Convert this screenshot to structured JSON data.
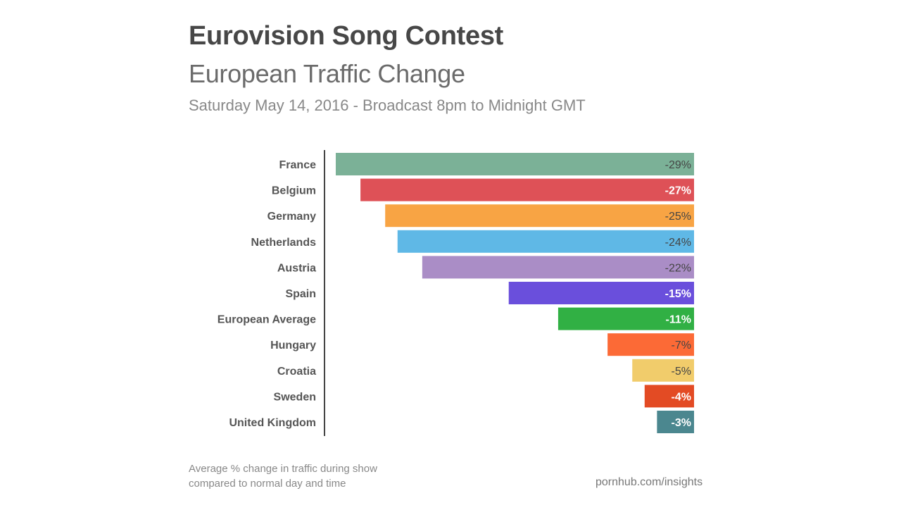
{
  "chart_data": {
    "type": "bar",
    "orientation": "horizontal",
    "title": "Eurovision Song Contest",
    "subtitle": "European Traffic Change",
    "dateline": "Saturday May 14, 2016 - Broadcast 8pm to Midnight GMT",
    "categories": [
      "France",
      "Belgium",
      "Germany",
      "Netherlands",
      "Austria",
      "Spain",
      "European Average",
      "Hungary",
      "Croatia",
      "Sweden",
      "United Kingdom"
    ],
    "values": [
      -29,
      -27,
      -25,
      -24,
      -22,
      -15,
      -11,
      -7,
      -5,
      -4,
      -3
    ],
    "data_labels": [
      "-29%",
      "-27%",
      "-25%",
      "-24%",
      "-22%",
      "-15%",
      "-11%",
      "-7%",
      "-5%",
      "-4%",
      "-3%"
    ],
    "colors": [
      "#7bb197",
      "#de5157",
      "#f8a444",
      "#5fb8e6",
      "#aa8dc6",
      "#6a4fdc",
      "#31b044",
      "#fc6a36",
      "#f1cc6b",
      "#e34b24",
      "#4b878f"
    ],
    "label_colors": [
      "#444",
      "#ffffff",
      "#444",
      "#444",
      "#444",
      "#ffffff",
      "#ffffff",
      "#444",
      "#444",
      "#ffffff",
      "#ffffff"
    ],
    "xlim": [
      -29,
      0
    ],
    "grid": false,
    "legend": "none",
    "note": [
      "Average % change in traffic during show",
      "compared to normal day and time"
    ],
    "source": "pornhub.com/insights"
  }
}
